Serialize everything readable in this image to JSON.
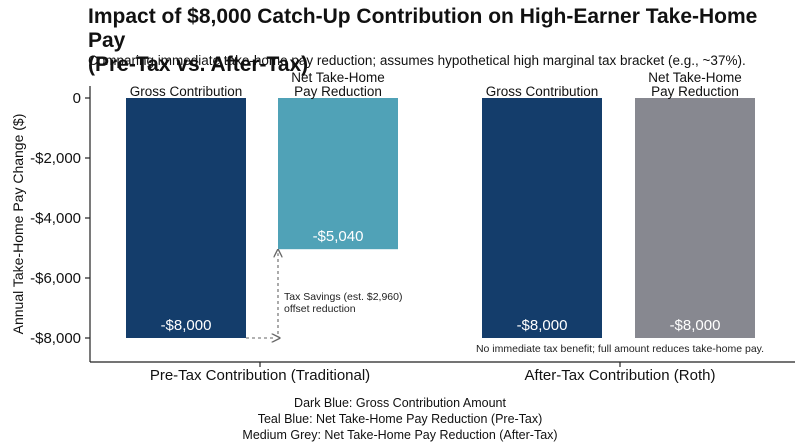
{
  "chart_data": {
    "type": "bar",
    "title_line1": "Impact of $8,000 Catch-Up Contribution on High-Earner Take-Home Pay",
    "title_line2": "(Pre-Tax vs. After-Tax)",
    "subtitle": "Comparing immediate take-home pay reduction; assumes hypothetical high marginal tax bracket (e.g., ~37%).",
    "ylabel": "Annual Take-Home Pay Change ($)",
    "xlabel": "",
    "ylim": [
      -8400,
      400
    ],
    "y_ticks": [
      {
        "value": 0,
        "label": "0"
      },
      {
        "value": -2000,
        "label": "-$2,000"
      },
      {
        "value": -4000,
        "label": "-$4,000"
      },
      {
        "value": -6000,
        "label": "-$6,000"
      },
      {
        "value": -8000,
        "label": "-$8,000"
      }
    ],
    "groups": [
      {
        "label": "Pre-Tax Contribution (Traditional)",
        "bars": [
          {
            "name": "Gross Contribution",
            "value": -8000,
            "value_label": "-$8,000",
            "color": "#143d6b",
            "bar_label": [
              "Gross Contribution"
            ]
          },
          {
            "name": "Net Take-Home Pay Reduction",
            "value": -5040,
            "value_label": "-$5,040",
            "color": "#50a2b7",
            "bar_label": [
              "Net Take-Home",
              "Pay Reduction"
            ]
          }
        ]
      },
      {
        "label": "After-Tax Contribution (Roth)",
        "bars": [
          {
            "name": "Gross Contribution",
            "value": -8000,
            "value_label": "-$8,000",
            "color": "#143d6b",
            "bar_label": [
              "Gross Contribution"
            ]
          },
          {
            "name": "Net Take-Home Pay Reduction",
            "value": -8000,
            "value_label": "-$8,000",
            "color": "#878890",
            "bar_label": [
              "Net Take-Home",
              "Pay Reduction"
            ]
          }
        ]
      }
    ],
    "annotations": {
      "tax_savings": [
        "Tax Savings (est. $2,960)",
        "offset reduction"
      ],
      "roth_note": "No immediate tax benefit; full amount reduces take-home pay."
    },
    "legend_lines": [
      "Dark Blue: Gross Contribution Amount",
      "Teal Blue: Net Take-Home Pay Reduction (Pre-Tax)",
      "Medium Grey: Net Take-Home Pay Reduction (After-Tax)"
    ],
    "grid": false,
    "legend": "bottom"
  }
}
